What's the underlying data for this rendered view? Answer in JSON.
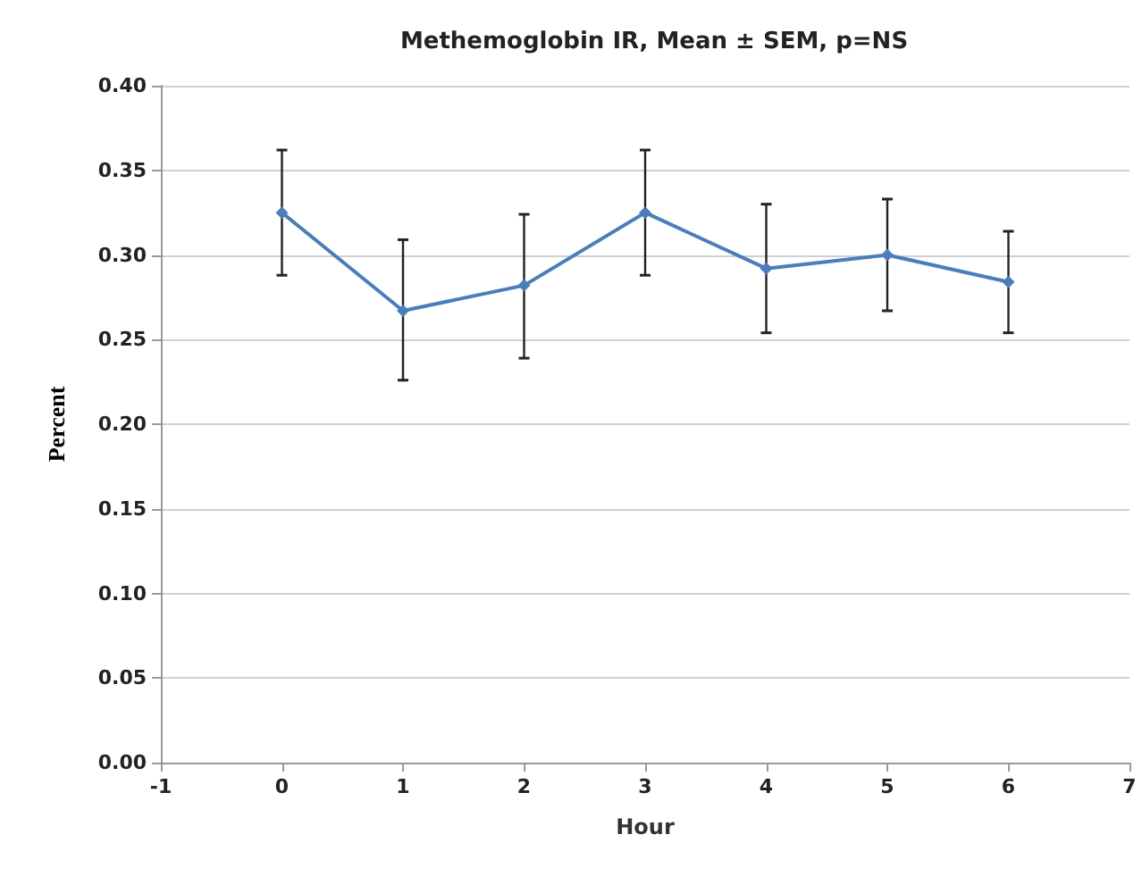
{
  "chart_data": {
    "type": "line",
    "title": "Methemoglobin IR, Mean ± SEM, p=NS",
    "xlabel": "Hour",
    "ylabel": "Percent",
    "x": [
      0,
      1,
      2,
      3,
      4,
      5,
      6
    ],
    "series": [
      {
        "color": "#4a7ebb",
        "values": [
          0.325,
          0.267,
          0.282,
          0.325,
          0.292,
          0.3,
          0.284
        ],
        "errors": [
          [
            0.288,
            0.362
          ],
          [
            0.226,
            0.309
          ],
          [
            0.239,
            0.324
          ],
          [
            0.288,
            0.362
          ],
          [
            0.254,
            0.33
          ],
          [
            0.267,
            0.333
          ],
          [
            0.254,
            0.314
          ]
        ]
      }
    ],
    "xlim": [
      -1,
      7
    ],
    "xticks": [
      -1,
      0,
      1,
      2,
      3,
      4,
      5,
      6,
      7
    ],
    "ylim": [
      0,
      0.4
    ],
    "yticks": [
      {
        "value": 0,
        "label": "0.00"
      },
      {
        "value": 0.05,
        "label": "0.05"
      },
      {
        "value": 0.1,
        "label": "0.10"
      },
      {
        "value": 0.15,
        "label": "0.15"
      },
      {
        "value": 0.2,
        "label": "0.20"
      },
      {
        "value": 0.25,
        "label": "0.25"
      },
      {
        "value": 0.3,
        "label": "0.30"
      },
      {
        "value": 0.35,
        "label": "0.35"
      },
      {
        "value": 0.4,
        "label": "0.40"
      }
    ],
    "grid": "y",
    "marker": "diamond",
    "line_style": "solid"
  }
}
